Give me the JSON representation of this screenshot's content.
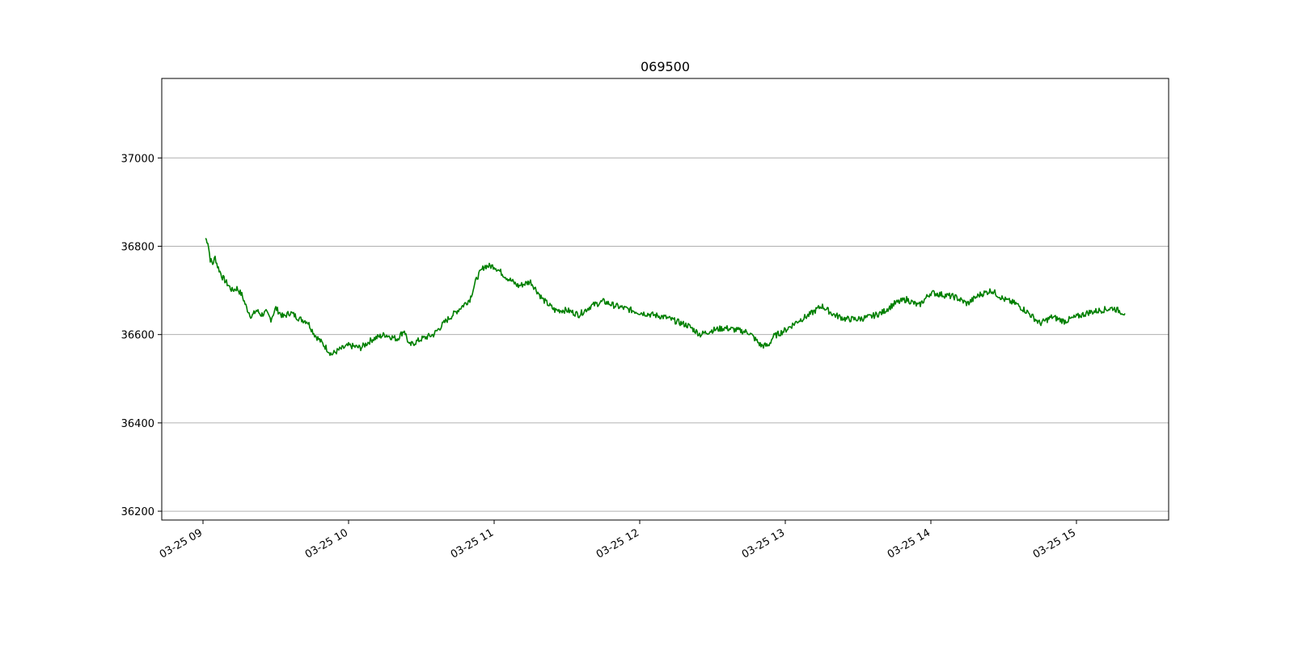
{
  "chart_data": {
    "type": "line",
    "title": "069500",
    "xlabel": "",
    "ylabel": "",
    "grid": "y-major",
    "legend": "none",
    "line_color": "#008000",
    "grid_color": "#b0b0b0",
    "xlim": [
      "03-25 08:43",
      "03-25 15:38"
    ],
    "ylim": [
      36180,
      37180
    ],
    "x_ticks": [
      "03-25 09:00",
      "03-25 10:00",
      "03-25 11:00",
      "03-25 12:00",
      "03-25 13:00",
      "03-25 14:00",
      "03-25 15:00"
    ],
    "x_tick_labels": [
      "03-25 09",
      "03-25 10",
      "03-25 11",
      "03-25 12",
      "03-25 13",
      "03-25 14",
      "03-25 15"
    ],
    "y_ticks": [
      36200,
      36400,
      36600,
      36800,
      37000
    ],
    "y_tick_labels": [
      "36200",
      "36400",
      "36600",
      "36800",
      "37000"
    ],
    "series": [
      {
        "x": [
          "09:01",
          "09:02",
          "09:03",
          "09:04",
          "09:05",
          "09:06",
          "09:08",
          "09:10",
          "09:12",
          "09:14",
          "09:16",
          "09:18",
          "09:20",
          "09:22",
          "09:24",
          "09:26",
          "09:28",
          "09:30",
          "09:33",
          "09:36",
          "09:40",
          "09:43",
          "09:46",
          "09:50",
          "09:53",
          "09:56",
          "10:00",
          "10:05",
          "10:10",
          "10:15",
          "10:20",
          "10:23",
          "10:25",
          "10:30",
          "10:35",
          "10:40",
          "10:43",
          "10:46",
          "10:50",
          "10:53",
          "10:56",
          "11:00",
          "11:05",
          "11:10",
          "11:15",
          "11:20",
          "11:25",
          "11:30",
          "11:35",
          "11:40",
          "11:45",
          "11:50",
          "12:00",
          "12:10",
          "12:20",
          "12:25",
          "12:30",
          "12:35",
          "12:40",
          "12:45",
          "12:50",
          "12:53",
          "12:55",
          "13:00",
          "13:05",
          "13:10",
          "13:15",
          "13:20",
          "13:25",
          "13:30",
          "13:35",
          "13:40",
          "13:45",
          "13:50",
          "13:55",
          "14:00",
          "14:05",
          "14:10",
          "14:15",
          "14:20",
          "14:25",
          "14:30",
          "14:35",
          "14:40",
          "14:45",
          "14:50",
          "14:55",
          "15:00",
          "15:05",
          "15:10",
          "15:15",
          "15:20"
        ],
        "y": [
          36818,
          36810,
          36770,
          36760,
          36775,
          36755,
          36730,
          36715,
          36700,
          36705,
          36690,
          36660,
          36640,
          36655,
          36645,
          36650,
          36635,
          36660,
          36640,
          36650,
          36635,
          36630,
          36600,
          36575,
          36555,
          36565,
          36575,
          36570,
          36590,
          36600,
          36590,
          36610,
          36575,
          36590,
          36600,
          36630,
          36645,
          36660,
          36680,
          36730,
          36755,
          36755,
          36730,
          36710,
          36720,
          36680,
          36655,
          36655,
          36645,
          36665,
          36675,
          36665,
          36650,
          36640,
          36620,
          36600,
          36610,
          36615,
          36610,
          36605,
          36575,
          36575,
          36595,
          36610,
          36630,
          36645,
          36665,
          36645,
          36635,
          36635,
          36640,
          36650,
          36670,
          36680,
          36665,
          36695,
          36690,
          36685,
          36670,
          36690,
          36700,
          36680,
          36670,
          36650,
          36625,
          36640,
          36630,
          36640,
          36650,
          36655,
          36660,
          36648
        ]
      }
    ]
  }
}
